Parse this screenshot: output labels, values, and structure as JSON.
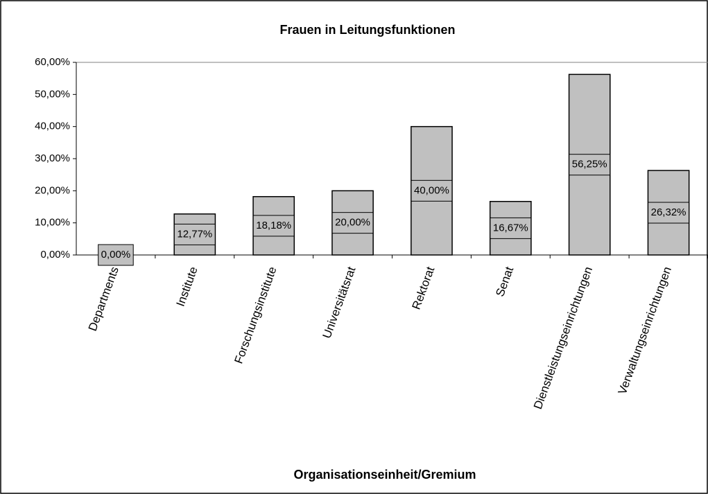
{
  "chart_data": {
    "type": "bar",
    "title": "Frauen in Leitungsfunktionen",
    "x_label": "Organisationseinheit/Gremium",
    "categories": [
      "Departments",
      "Institute",
      "Forschungsinstitute",
      "Universitätsrat",
      "Rektorat",
      "Senat",
      "Dienstleistungseinrichtungen",
      "Verwaltungseinrichtungen"
    ],
    "values": [
      0,
      12.77,
      18.18,
      20,
      40,
      16.67,
      56.25,
      26.32
    ],
    "value_labels": [
      "0,00%",
      "12,77%",
      "18,18%",
      "20,00%",
      "40,00%",
      "16,67%",
      "56,25%",
      "26,32%"
    ],
    "color": "#c0c0c0",
    "ylim": [
      0,
      60
    ],
    "yticks": [
      {
        "value": 0,
        "label": "0,00%"
      },
      {
        "value": 10,
        "label": "10,00%"
      },
      {
        "value": 20,
        "label": "20,00%"
      },
      {
        "value": 30,
        "label": "30,00%"
      },
      {
        "value": 40,
        "label": "40,00%"
      },
      {
        "value": 50,
        "label": "50,00%"
      },
      {
        "value": 60,
        "label": "60,00%"
      }
    ],
    "grid": false
  }
}
